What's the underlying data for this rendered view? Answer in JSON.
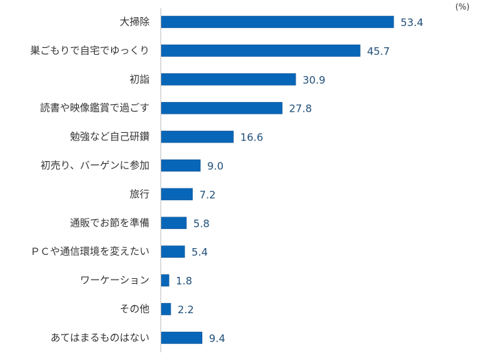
{
  "chart_data": {
    "type": "bar",
    "orientation": "horizontal",
    "title": "",
    "xlabel": "",
    "ylabel": "",
    "unit_label": "(%)",
    "xlim": [
      0,
      60
    ],
    "grid": false,
    "legend": "none",
    "bar_color": "#0866b8",
    "categories": [
      "大掃除",
      "巣ごもりで自宅でゆっくり",
      "初詣",
      "読書や映像鑑賞で過ごす",
      "勉強など自己研鑽",
      "初売り、バーゲンに参加",
      "旅行",
      "通販でお節を準備",
      "ＰＣや通信環境を変えたい",
      "ワーケーション",
      "その他",
      "あてはまるものはない"
    ],
    "values": [
      53.4,
      45.7,
      30.9,
      27.8,
      16.6,
      9.0,
      7.2,
      5.8,
      5.4,
      1.8,
      2.2,
      9.4
    ],
    "value_labels": [
      "53.4",
      "45.7",
      "30.9",
      "27.8",
      "16.6",
      "9.0",
      "7.2",
      "5.8",
      "5.4",
      "1.8",
      "2.2",
      "9.4"
    ]
  }
}
